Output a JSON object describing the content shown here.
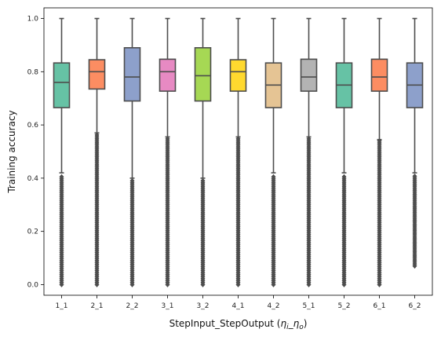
{
  "chart_data": {
    "type": "box",
    "xlabel": "StepInput_StepOutput (",
    "xlabel_math": "η",
    "xlabel_sub_i": "i",
    "xlabel_sep": "_",
    "xlabel_sub_o": "o",
    "xlabel_close": ")",
    "ylabel": "Training accuracy",
    "ylim": [
      -0.04,
      1.04
    ],
    "yticks": [
      0.0,
      0.2,
      0.4,
      0.6,
      0.8,
      1.0
    ],
    "ytick_labels": [
      "0.0",
      "0.2",
      "0.4",
      "0.6",
      "0.8",
      "1.0"
    ],
    "grid": false,
    "categories": [
      "1_1",
      "2_1",
      "2_2",
      "3_1",
      "3_2",
      "4_1",
      "4_2",
      "5_1",
      "5_2",
      "6_1",
      "6_2"
    ],
    "colors": [
      "#66c2a5",
      "#fc8d62",
      "#8da0cb",
      "#e78ac3",
      "#a6d854",
      "#ffd92f",
      "#e5c494",
      "#b3b3b3",
      "#66c2a5",
      "#fc8d62",
      "#8da0cb"
    ],
    "boxes": [
      {
        "q1": 0.665,
        "median": 0.76,
        "q3": 0.833,
        "whisker_low": 0.42,
        "whisker_high": 1.0,
        "flier_min": 0.0,
        "flier_max": 0.41
      },
      {
        "q1": 0.735,
        "median": 0.8,
        "q3": 0.845,
        "whisker_low": 0.57,
        "whisker_high": 1.0,
        "flier_min": 0.0,
        "flier_max": 0.565
      },
      {
        "q1": 0.69,
        "median": 0.78,
        "q3": 0.89,
        "whisker_low": 0.4,
        "whisker_high": 1.0,
        "flier_min": 0.0,
        "flier_max": 0.395
      },
      {
        "q1": 0.727,
        "median": 0.8,
        "q3": 0.847,
        "whisker_low": 0.555,
        "whisker_high": 1.0,
        "flier_min": 0.0,
        "flier_max": 0.55
      },
      {
        "q1": 0.69,
        "median": 0.785,
        "q3": 0.89,
        "whisker_low": 0.4,
        "whisker_high": 1.0,
        "flier_min": 0.0,
        "flier_max": 0.395
      },
      {
        "q1": 0.727,
        "median": 0.8,
        "q3": 0.845,
        "whisker_low": 0.555,
        "whisker_high": 1.0,
        "flier_min": 0.0,
        "flier_max": 0.55
      },
      {
        "q1": 0.665,
        "median": 0.75,
        "q3": 0.833,
        "whisker_low": 0.42,
        "whisker_high": 1.0,
        "flier_min": 0.0,
        "flier_max": 0.41
      },
      {
        "q1": 0.727,
        "median": 0.78,
        "q3": 0.847,
        "whisker_low": 0.555,
        "whisker_high": 1.0,
        "flier_min": 0.0,
        "flier_max": 0.55
      },
      {
        "q1": 0.665,
        "median": 0.75,
        "q3": 0.833,
        "whisker_low": 0.42,
        "whisker_high": 1.0,
        "flier_min": 0.0,
        "flier_max": 0.41
      },
      {
        "q1": 0.727,
        "median": 0.78,
        "q3": 0.847,
        "whisker_low": 0.545,
        "whisker_high": 1.0,
        "flier_min": 0.0,
        "flier_max": 0.54
      },
      {
        "q1": 0.665,
        "median": 0.75,
        "q3": 0.833,
        "whisker_low": 0.42,
        "whisker_high": 1.0,
        "flier_min": 0.07,
        "flier_max": 0.41
      }
    ]
  }
}
